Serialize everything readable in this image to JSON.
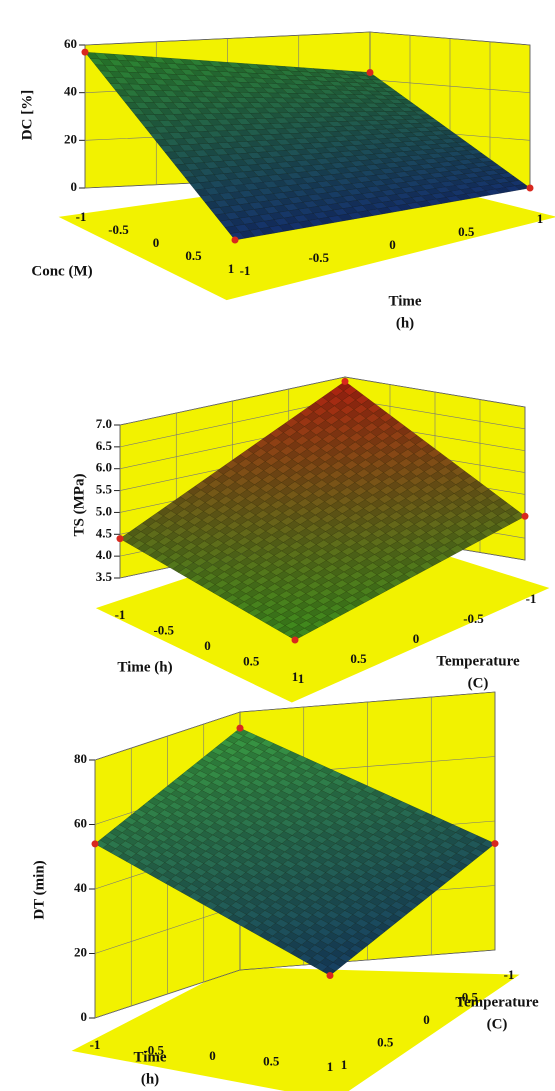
{
  "chart_data": [
    {
      "type": "surface",
      "zlabel": "DC [%]",
      "xlabel": "Conc (M)",
      "ylabel": [
        "Time",
        "(h)"
      ],
      "x": [
        -1,
        1
      ],
      "y": [
        -1,
        1
      ],
      "z": [
        [
          57,
          43
        ],
        [
          0,
          0
        ]
      ],
      "xlim": [
        -1,
        1
      ],
      "ylim": [
        -1,
        1
      ],
      "zlim": [
        0,
        60
      ],
      "xticks": [
        -1,
        -0.5,
        0,
        0.5,
        1
      ],
      "yticks": [
        -1,
        -0.5,
        0,
        0.5,
        1
      ],
      "zticks": [
        0,
        20,
        40,
        60
      ],
      "colormap": [
        "#14306c",
        "#2f8c2a"
      ],
      "wall_color": "#f2f200",
      "point_color": "#d8281e"
    },
    {
      "type": "surface",
      "zlabel": "TS (MPa)",
      "xlabel": "Time (h)",
      "ylabel": [
        "Temperature",
        "(C)"
      ],
      "x": [
        -1,
        1
      ],
      "y": [
        -1,
        1
      ],
      "z": [
        [
          6.9,
          4.4
        ],
        [
          4.5,
          3.5
        ]
      ],
      "xlim": [
        -1,
        1
      ],
      "ylim": [
        -1,
        1
      ],
      "zlim": [
        3.5,
        7
      ],
      "xticks": [
        -1,
        -0.5,
        0,
        0.5,
        1
      ],
      "yticks": [
        -1,
        -0.5,
        0,
        0.5,
        1
      ],
      "zticks": [
        3.5,
        {
          "value": 4,
          "label": "4.0"
        },
        4.5,
        {
          "value": 5,
          "label": "5.0"
        },
        5.5,
        {
          "value": 6,
          "label": "6.0"
        },
        6.5,
        {
          "value": 7,
          "label": "7.0"
        }
      ],
      "colormap": [
        "#3c8c1e",
        "#b21e10"
      ],
      "wall_color": "#f2f200",
      "point_color": "#d8281e"
    },
    {
      "type": "surface",
      "zlabel": "DT (min)",
      "xlabel": [
        "Time",
        "(h)"
      ],
      "ylabel": [
        "Temperature",
        "(C)"
      ],
      "x": [
        -1,
        1
      ],
      "y": [
        -1,
        1
      ],
      "z": [
        [
          75,
          54
        ],
        [
          33,
          20
        ]
      ],
      "xlim": [
        -1,
        1
      ],
      "ylim": [
        -1,
        1
      ],
      "zlim": [
        0,
        80
      ],
      "xticks": [
        -1,
        -0.5,
        0,
        0.5,
        1
      ],
      "yticks": [
        -1,
        -0.5,
        0,
        0.5,
        1
      ],
      "zticks": [
        0,
        20,
        40,
        60,
        80
      ],
      "colormap": [
        "#0a1e6e",
        "#3ca23c"
      ],
      "wall_color": "#f2f200",
      "point_color": "#d8281e"
    }
  ]
}
